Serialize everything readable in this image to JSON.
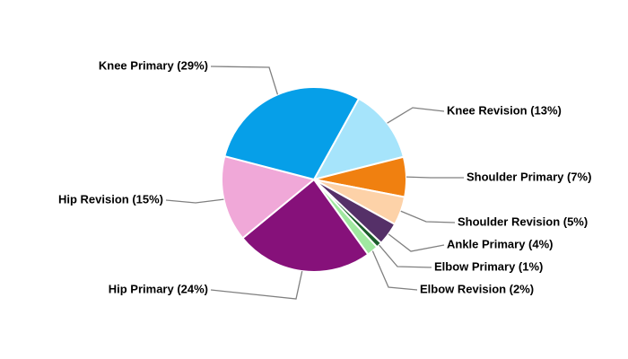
{
  "chart_data": {
    "type": "pie",
    "value_labels": [
      "Knee Revision (13%)",
      "Shoulder Primary (7%)",
      "Shoulder Revision (5%)",
      "Ankle Primary (4%)",
      "Elbow Primary (1%)",
      "Elbow Revision (2%)",
      "Hip Primary (24%)",
      "Hip Revision (15%)",
      "Knee Primary (29%)"
    ],
    "values": [
      13,
      7,
      5,
      4,
      1,
      2,
      24,
      15,
      29
    ],
    "colors": [
      "#a6e4fb",
      "#f08010",
      "#fdd2a8",
      "#553068",
      "#1a5e2a",
      "#a0e8a0",
      "#86117a",
      "#f0a8d8",
      "#069fe8"
    ]
  }
}
